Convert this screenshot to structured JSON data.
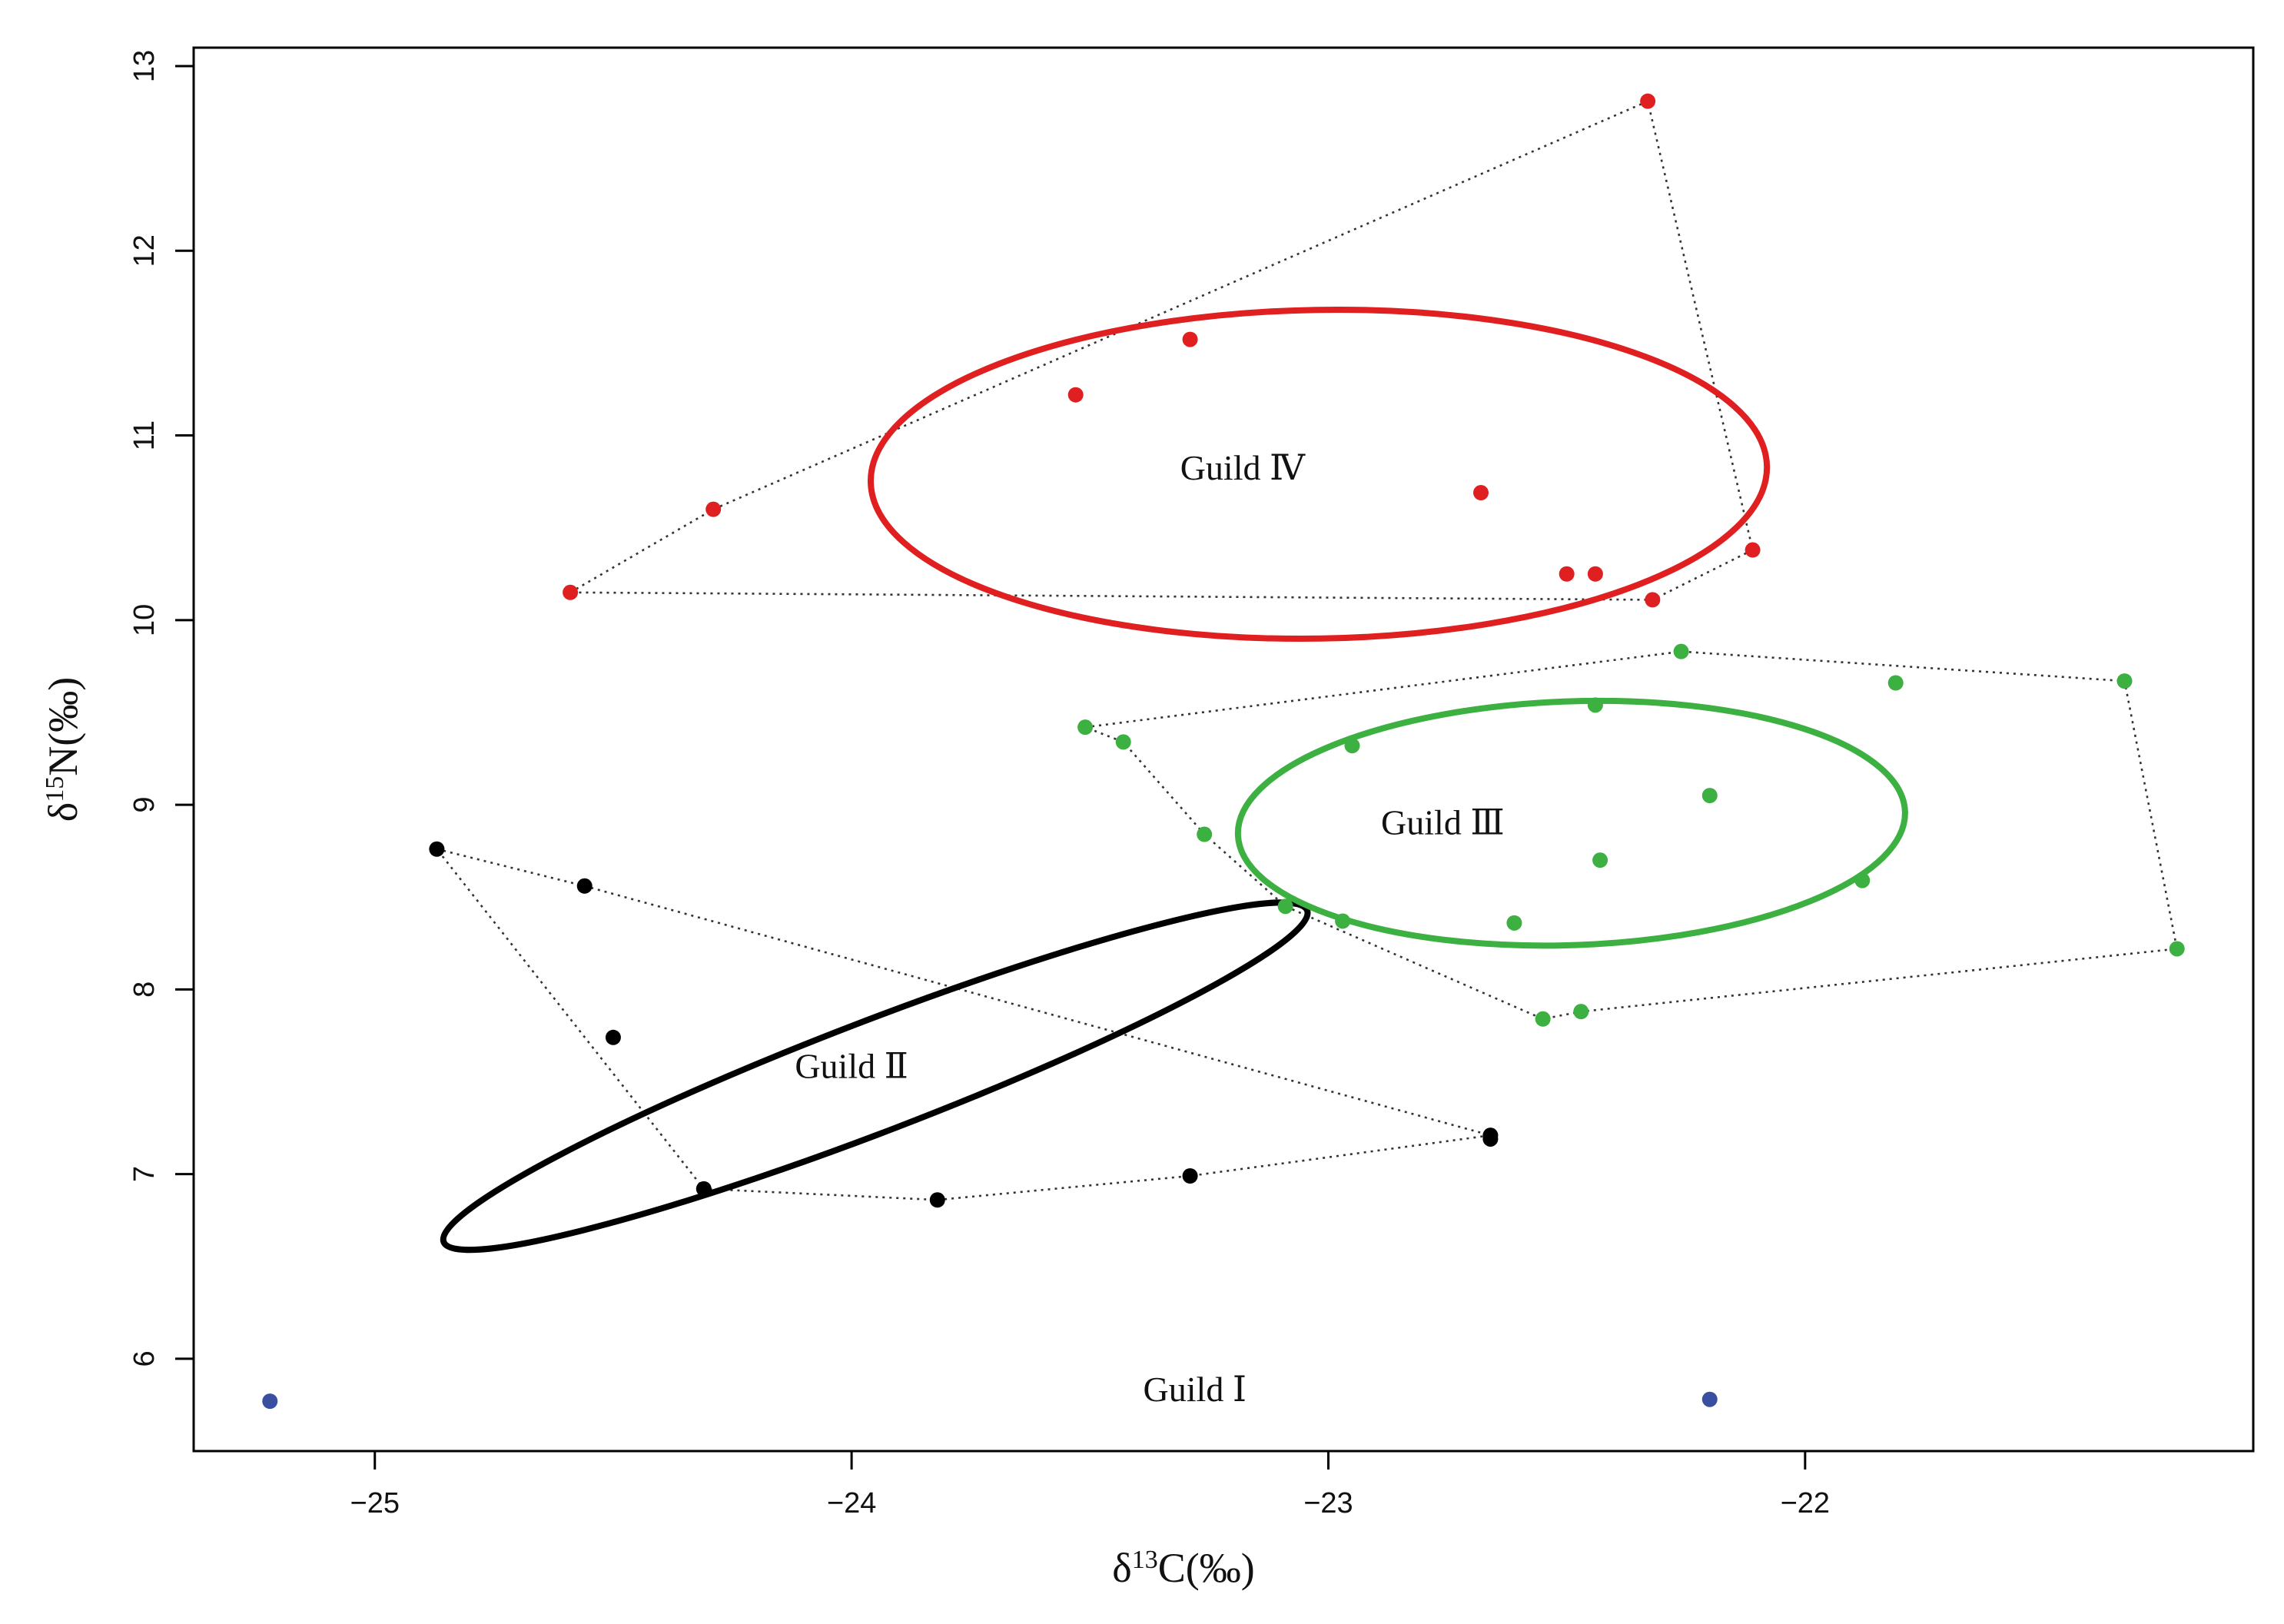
{
  "chart_data": {
    "type": "scatter",
    "title": "",
    "xlabel": {
      "prefix": "δ",
      "sup": "13",
      "suffix": "C(‰)"
    },
    "ylabel": {
      "prefix": "δ",
      "sup": "15",
      "suffix": "N(‰)"
    },
    "xlim": [
      -25.38,
      -21.06
    ],
    "ylim": [
      5.5,
      13.1
    ],
    "xticks": [
      -25,
      -24,
      -23,
      -22
    ],
    "xtick_labels": [
      "−25",
      "−24",
      "−23",
      "−22"
    ],
    "yticks": [
      6,
      7,
      8,
      9,
      10,
      11,
      12,
      13
    ],
    "ytick_labels": [
      "6",
      "7",
      "8",
      "9",
      "10",
      "11",
      "12",
      "13"
    ],
    "grid": false,
    "series": [
      {
        "name": "Guild Ⅰ",
        "color": "#3b4fa0",
        "label_at": [
          -23.28,
          5.77
        ],
        "points": [
          [
            -25.22,
            5.77
          ],
          [
            -22.2,
            5.78
          ]
        ],
        "hull": [],
        "ellipse": null
      },
      {
        "name": "Guild Ⅱ",
        "color": "#000000",
        "label_at": [
          -24.0,
          7.52
        ],
        "points": [
          [
            -24.87,
            8.76
          ],
          [
            -24.56,
            8.56
          ],
          [
            -24.5,
            7.74
          ],
          [
            -24.31,
            6.92
          ],
          [
            -23.82,
            6.86
          ],
          [
            -23.29,
            6.99
          ],
          [
            -22.66,
            7.21
          ],
          [
            -22.66,
            7.19
          ]
        ],
        "hull": [
          [
            -24.87,
            8.76
          ],
          [
            -24.56,
            8.56
          ],
          [
            -22.66,
            7.21
          ],
          [
            -23.29,
            6.99
          ],
          [
            -23.82,
            6.86
          ],
          [
            -24.31,
            6.92
          ],
          [
            -24.87,
            8.76
          ]
        ],
        "ellipse": {
          "cx": -23.95,
          "cy": 7.53,
          "rx": 0.97,
          "ry": 0.3,
          "angle_deg": -21
        }
      },
      {
        "name": "Guild Ⅲ",
        "color": "#3cb040",
        "label_at": [
          -22.76,
          8.84
        ],
        "points": [
          [
            -23.51,
            9.42
          ],
          [
            -23.43,
            9.34
          ],
          [
            -22.95,
            9.32
          ],
          [
            -22.44,
            9.54
          ],
          [
            -22.26,
            9.83
          ],
          [
            -21.81,
            9.66
          ],
          [
            -21.33,
            9.67
          ],
          [
            -23.26,
            8.84
          ],
          [
            -23.09,
            8.45
          ],
          [
            -22.97,
            8.37
          ],
          [
            -22.61,
            8.36
          ],
          [
            -22.43,
            8.7
          ],
          [
            -22.2,
            9.05
          ],
          [
            -21.88,
            8.59
          ],
          [
            -21.22,
            8.22
          ],
          [
            -22.55,
            7.84
          ],
          [
            -22.47,
            7.88
          ]
        ],
        "hull": [
          [
            -23.51,
            9.42
          ],
          [
            -22.26,
            9.83
          ],
          [
            -21.33,
            9.67
          ],
          [
            -21.22,
            8.22
          ],
          [
            -22.47,
            7.88
          ],
          [
            -22.55,
            7.84
          ],
          [
            -23.09,
            8.45
          ],
          [
            -23.26,
            8.84
          ],
          [
            -23.43,
            9.34
          ],
          [
            -23.51,
            9.42
          ]
        ],
        "ellipse": {
          "cx": -22.49,
          "cy": 8.9,
          "rx": 0.7,
          "ry": 0.66,
          "angle_deg": -2
        }
      },
      {
        "name": "Guild Ⅳ",
        "color": "#e02020",
        "label_at": [
          -23.18,
          10.76
        ],
        "points": [
          [
            -24.59,
            10.15
          ],
          [
            -24.29,
            10.6
          ],
          [
            -23.53,
            11.22
          ],
          [
            -23.29,
            11.52
          ],
          [
            -22.68,
            10.69
          ],
          [
            -22.5,
            10.25
          ],
          [
            -22.44,
            10.25
          ],
          [
            -22.33,
            12.81
          ],
          [
            -22.32,
            10.11
          ],
          [
            -22.11,
            10.38
          ]
        ],
        "hull": [
          [
            -24.59,
            10.15
          ],
          [
            -24.29,
            10.6
          ],
          [
            -22.33,
            12.81
          ],
          [
            -22.11,
            10.38
          ],
          [
            -22.32,
            10.11
          ],
          [
            -24.59,
            10.15
          ]
        ],
        "ellipse": {
          "cx": -23.02,
          "cy": 10.79,
          "rx": 0.94,
          "ry": 0.89,
          "angle_deg": -1
        }
      }
    ]
  }
}
